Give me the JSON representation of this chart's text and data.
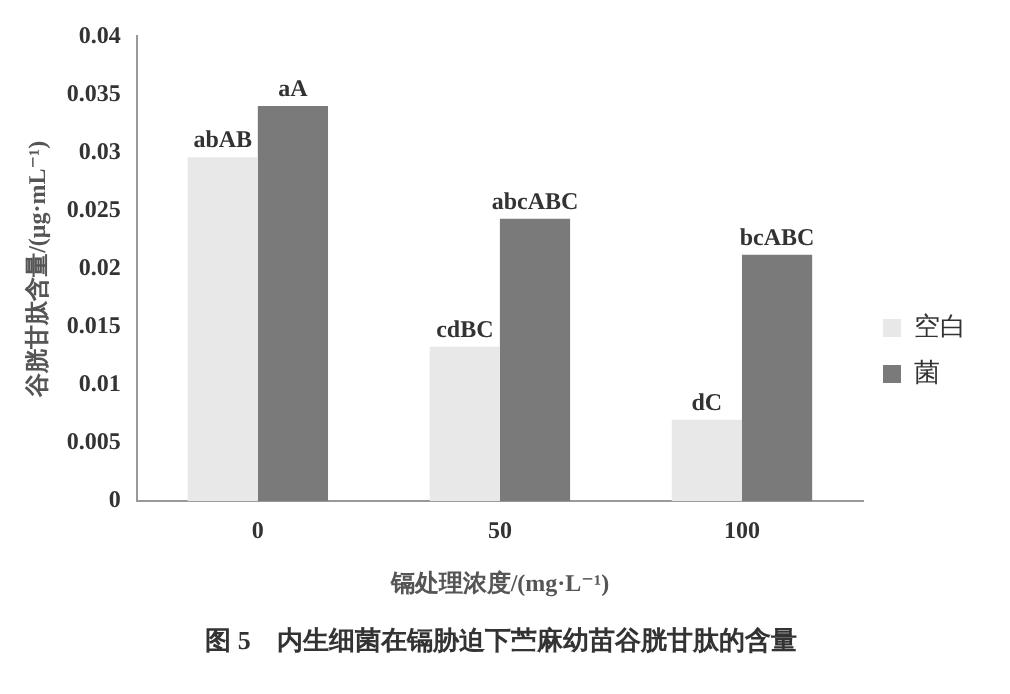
{
  "chart_data": {
    "type": "bar",
    "title": "图 5　内生细菌在镉胁迫下苎麻幼苗谷胱甘肽的含量",
    "xlabel": "镉处理浓度/(mg·L⁻¹)",
    "ylabel": "谷胱甘肽含量/(μg·mL⁻¹)",
    "categories": [
      "0",
      "50",
      "100"
    ],
    "series": [
      {
        "name": "空白",
        "color": "#e8e8e8",
        "values": [
          0.0296,
          0.0133,
          0.007
        ]
      },
      {
        "name": "菌",
        "color": "#7a7a7a",
        "values": [
          0.034,
          0.0243,
          0.0212
        ]
      }
    ],
    "ylim": [
      0,
      0.04
    ],
    "yticks": [
      0,
      0.005,
      0.01,
      0.015,
      0.02,
      0.025,
      0.03,
      0.035,
      0.04
    ],
    "grid": false,
    "legend": "right",
    "annotations": [
      {
        "text": "abAB",
        "x": "0",
        "y": 0.0296
      },
      {
        "text": "aA",
        "x": "0",
        "y": 0.034
      },
      {
        "text": "cdBC",
        "x": "50",
        "y": 0.0133
      },
      {
        "text": "abcABC",
        "x": "50",
        "y": 0.0243
      },
      {
        "text": "dC",
        "x": "100",
        "y": 0.007
      },
      {
        "text": "bcABC",
        "x": "100",
        "y": 0.0212
      }
    ]
  }
}
